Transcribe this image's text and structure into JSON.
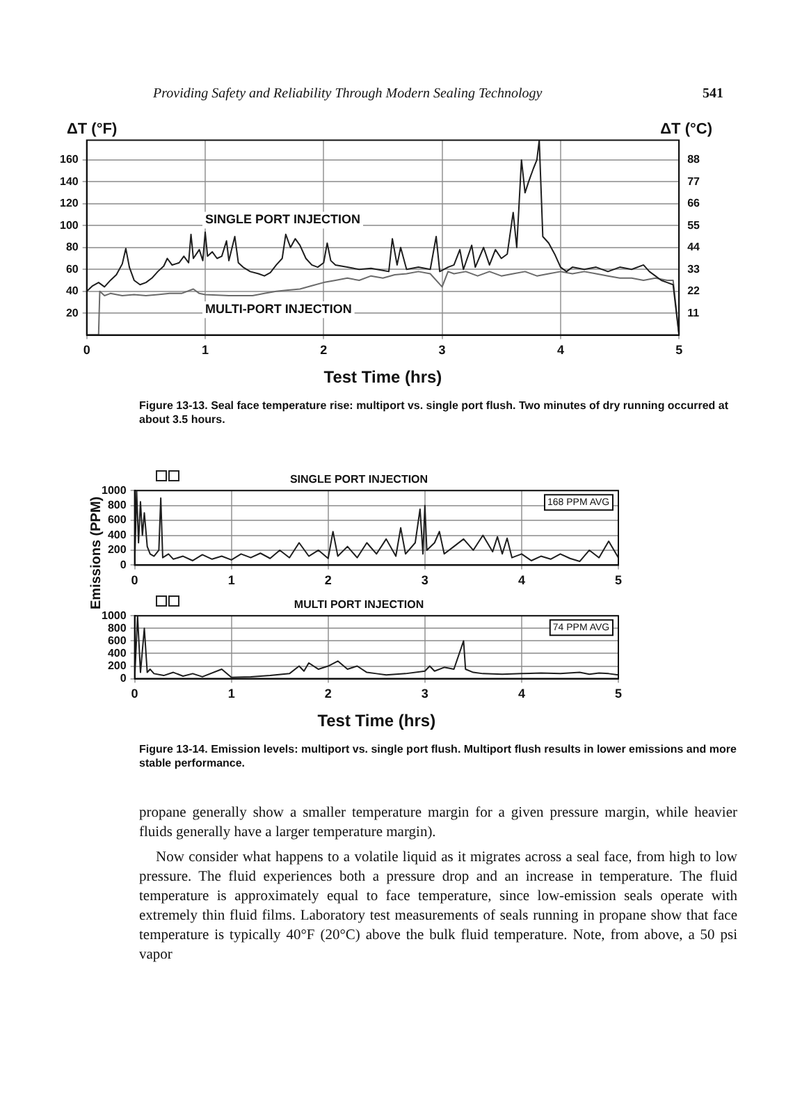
{
  "chart_data": [
    {
      "type": "other",
      "annotations": [
        "Providing Safety and Reliability Through Modern Sealing Technology",
        "541"
      ]
    },
    {
      "type": "line",
      "xlabel": "Test Time (hrs)",
      "ylabel": "ΔT (°F)",
      "y2label": "ΔT (°C)",
      "grid": true,
      "xlim": [
        0,
        5
      ],
      "xticks": [
        0,
        1,
        2,
        3,
        4,
        5
      ],
      "ylim": [
        0,
        178
      ],
      "yticks": [
        20,
        40,
        60,
        80,
        100,
        120,
        140,
        160
      ],
      "y2lim": [
        0,
        97.9
      ],
      "y2ticks": [
        11,
        22,
        33,
        44,
        55,
        66,
        77,
        88
      ],
      "annotations": [
        "Figure 13-13. Seal face temperature rise: multiport vs. single port flush. Two minutes of dry running occurred at about 3.5 hours."
      ],
      "series": [
        {
          "name": "SINGLE PORT INJECTION",
          "color": "#1e1e1e",
          "x": [
            0,
            0.05,
            0.1,
            0.15,
            0.2,
            0.25,
            0.3,
            0.33,
            0.36,
            0.4,
            0.45,
            0.5,
            0.55,
            0.6,
            0.65,
            0.68,
            0.72,
            0.78,
            0.82,
            0.86,
            0.88,
            0.9,
            0.95,
            0.98,
            1.0,
            1.02,
            1.06,
            1.1,
            1.14,
            1.18,
            1.2,
            1.25,
            1.28,
            1.32,
            1.38,
            1.45,
            1.5,
            1.55,
            1.6,
            1.65,
            1.68,
            1.72,
            1.76,
            1.8,
            1.85,
            1.9,
            1.95,
            2.0,
            2.03,
            2.06,
            2.1,
            2.2,
            2.3,
            2.4,
            2.5,
            2.55,
            2.58,
            2.62,
            2.65,
            2.7,
            2.8,
            2.9,
            2.95,
            2.98,
            3.05,
            3.1,
            3.15,
            3.18,
            3.25,
            3.28,
            3.35,
            3.4,
            3.45,
            3.5,
            3.55,
            3.6,
            3.63,
            3.67,
            3.7,
            3.73,
            3.77,
            3.8,
            3.82,
            3.85,
            3.9,
            3.95,
            4.0,
            4.05,
            4.1,
            4.2,
            4.3,
            4.4,
            4.5,
            4.6,
            4.7,
            4.75,
            4.8,
            4.85,
            4.9,
            4.95,
            5.0
          ],
          "values": [
            40,
            45,
            48,
            44,
            50,
            55,
            65,
            79,
            62,
            50,
            46,
            48,
            52,
            58,
            63,
            70,
            64,
            66,
            72,
            66,
            92,
            70,
            78,
            68,
            94,
            72,
            76,
            70,
            72,
            86,
            68,
            90,
            66,
            62,
            58,
            56,
            54,
            57,
            64,
            70,
            92,
            80,
            88,
            82,
            70,
            64,
            62,
            66,
            84,
            68,
            64,
            62,
            60,
            61,
            59,
            58,
            88,
            64,
            80,
            60,
            62,
            60,
            90,
            58,
            62,
            64,
            78,
            60,
            82,
            62,
            80,
            64,
            78,
            70,
            74,
            112,
            80,
            160,
            130,
            140,
            152,
            160,
            178,
            90,
            84,
            74,
            62,
            58,
            62,
            60,
            62,
            58,
            62,
            60,
            64,
            58,
            54,
            50,
            48,
            46,
            0
          ]
        },
        {
          "name": "MULTI-PORT INJECTION",
          "color": "#6a6a6a",
          "x": [
            0,
            0.1,
            0.11,
            0.15,
            0.2,
            0.3,
            0.4,
            0.5,
            0.6,
            0.7,
            0.8,
            0.9,
            0.95,
            1.0,
            1.2,
            1.4,
            1.5,
            1.6,
            1.7,
            1.8,
            1.9,
            2.0,
            2.1,
            2.2,
            2.3,
            2.4,
            2.5,
            2.6,
            2.7,
            2.8,
            2.9,
            3.0,
            3.05,
            3.1,
            3.2,
            3.3,
            3.4,
            3.5,
            3.6,
            3.7,
            3.8,
            3.9,
            4.0,
            4.1,
            4.2,
            4.3,
            4.4,
            4.5,
            4.6,
            4.7,
            4.8,
            4.9,
            4.95,
            5.0
          ],
          "values": [
            0,
            0,
            40,
            36,
            38,
            36,
            37,
            36,
            37,
            38,
            38,
            42,
            38,
            37,
            36,
            36,
            38,
            40,
            41,
            42,
            45,
            48,
            50,
            52,
            50,
            54,
            52,
            55,
            56,
            58,
            56,
            44,
            58,
            56,
            58,
            54,
            58,
            54,
            56,
            58,
            54,
            56,
            58,
            56,
            58,
            56,
            54,
            52,
            52,
            50,
            52,
            50,
            50,
            0
          ]
        }
      ]
    },
    {
      "type": "line",
      "title": "SINGLE PORT INJECTION",
      "ylabel": "Emissions (PPM)",
      "grid": true,
      "xlim": [
        0,
        5
      ],
      "xticks": [
        0,
        1,
        2,
        3,
        4,
        5
      ],
      "ylim": [
        0,
        1000
      ],
      "yticks": [
        0,
        200,
        400,
        600,
        800,
        1000
      ],
      "annotations": [
        "168 PPM AVG"
      ],
      "series": [
        {
          "color": "#1e1e1e",
          "x": [
            0,
            0.02,
            0.04,
            0.06,
            0.08,
            0.1,
            0.13,
            0.16,
            0.2,
            0.25,
            0.27,
            0.29,
            0.35,
            0.4,
            0.5,
            0.6,
            0.7,
            0.8,
            0.9,
            1.0,
            1.1,
            1.2,
            1.3,
            1.4,
            1.5,
            1.6,
            1.7,
            1.8,
            1.9,
            2.0,
            2.05,
            2.1,
            2.2,
            2.3,
            2.4,
            2.5,
            2.6,
            2.7,
            2.75,
            2.8,
            2.9,
            2.95,
            2.98,
            3.0,
            3.02,
            3.1,
            3.15,
            3.2,
            3.3,
            3.4,
            3.5,
            3.6,
            3.7,
            3.75,
            3.8,
            3.85,
            3.9,
            4.0,
            4.1,
            4.2,
            4.3,
            4.4,
            4.5,
            4.6,
            4.7,
            4.8,
            4.9,
            5.0
          ],
          "values": [
            0,
            1000,
            300,
            850,
            400,
            700,
            250,
            150,
            120,
            200,
            900,
            100,
            150,
            80,
            120,
            60,
            140,
            80,
            120,
            70,
            150,
            100,
            160,
            90,
            200,
            100,
            300,
            120,
            200,
            90,
            450,
            120,
            250,
            100,
            300,
            150,
            350,
            120,
            500,
            150,
            300,
            750,
            150,
            800,
            200,
            300,
            450,
            150,
            250,
            350,
            200,
            400,
            180,
            380,
            150,
            360,
            100,
            150,
            60,
            120,
            80,
            150,
            90,
            50,
            200,
            100,
            320,
            100
          ]
        }
      ]
    },
    {
      "type": "line",
      "title": "MULTI PORT INJECTION",
      "xlabel": "Test Time (hrs)",
      "grid": true,
      "xlim": [
        0,
        5
      ],
      "xticks": [
        0,
        1,
        2,
        3,
        4,
        5
      ],
      "ylim": [
        0,
        1000
      ],
      "yticks": [
        0,
        200,
        400,
        600,
        800,
        1000
      ],
      "annotations": [
        "74 PPM AVG",
        "Figure 13-14. Emission levels: multiport vs. single port flush. Multiport flush results in lower emissions and more stable performance."
      ],
      "series": [
        {
          "color": "#1e1e1e",
          "x": [
            0,
            0.03,
            0.06,
            0.1,
            0.13,
            0.16,
            0.2,
            0.3,
            0.4,
            0.5,
            0.6,
            0.7,
            0.9,
            1.0,
            1.2,
            1.4,
            1.6,
            1.7,
            1.75,
            1.8,
            1.9,
            2.0,
            2.1,
            2.2,
            2.3,
            2.4,
            2.5,
            2.6,
            2.8,
            3.0,
            3.05,
            3.1,
            3.2,
            3.3,
            3.4,
            3.42,
            3.5,
            3.6,
            3.8,
            4.0,
            4.2,
            4.4,
            4.6,
            4.7,
            4.8,
            4.9,
            5.0
          ],
          "values": [
            0,
            1000,
            100,
            800,
            100,
            150,
            80,
            50,
            100,
            40,
            80,
            30,
            150,
            20,
            30,
            50,
            80,
            200,
            120,
            250,
            150,
            200,
            280,
            150,
            200,
            100,
            80,
            60,
            80,
            120,
            200,
            120,
            180,
            150,
            600,
            150,
            100,
            80,
            70,
            80,
            90,
            80,
            100,
            70,
            90,
            80,
            60
          ]
        }
      ]
    },
    {
      "type": "other",
      "annotations": [
        "propane generally show a smaller temperature margin for a given pressure margin, while heavier fluids generally have a larger temperature margin).",
        "Now consider what happens to a volatile liquid as it migrates across a seal face, from high to low pressure. The fluid experiences both a pressure drop and an increase in temperature. The fluid temperature is approximately equal to face temperature, since low-emission seals operate with extremely thin fluid films. Laboratory test measurements of seals running in propane show that face temperature is typically 40°F (20°C) above the bulk fluid temperature. Note, from above, a 50 psi vapor"
      ]
    }
  ]
}
